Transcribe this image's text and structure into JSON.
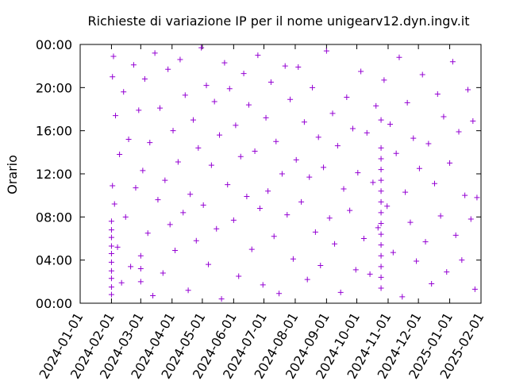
{
  "chart_data": {
    "type": "scatter",
    "title": "Richieste di variazione IP per il nome unigearv12.dyn.ingv.it",
    "xlabel": "",
    "ylabel": "Orario",
    "x_range": [
      "2024-01-01",
      "2025-02-01"
    ],
    "y_range": [
      "00:00",
      "24:00"
    ],
    "x_ticks": [
      "2024-01-01",
      "2024-02-01",
      "2024-03-01",
      "2024-04-01",
      "2024-05-01",
      "2024-06-01",
      "2024-07-01",
      "2024-08-01",
      "2024-09-01",
      "2024-10-01",
      "2024-11-01",
      "2024-12-01",
      "2025-01-01",
      "2025-02-01"
    ],
    "y_ticks": [
      "00:00",
      "04:00",
      "08:00",
      "12:00",
      "16:00",
      "20:00",
      "00:00"
    ],
    "y_tick_hours": [
      0,
      4,
      8,
      12,
      16,
      20,
      24
    ],
    "marker": "plus",
    "color": "#9400d3",
    "grid": false,
    "legend": "none",
    "series": [
      {
        "values": [
          [
            "2024-02-01",
            0.8
          ],
          [
            "2024-02-01",
            1.5
          ],
          [
            "2024-02-01",
            2.3
          ],
          [
            "2024-02-01",
            3.0
          ],
          [
            "2024-02-01",
            3.8
          ],
          [
            "2024-02-01",
            4.6
          ],
          [
            "2024-02-01",
            5.3
          ],
          [
            "2024-02-01",
            6.1
          ],
          [
            "2024-02-01",
            6.8
          ],
          [
            "2024-02-01",
            7.6
          ],
          [
            "2024-02-02",
            10.9
          ],
          [
            "2024-02-02",
            21.0
          ],
          [
            "2024-02-03",
            22.9
          ],
          [
            "2024-02-04",
            9.2
          ],
          [
            "2024-02-05",
            17.4
          ],
          [
            "2024-02-07",
            5.2
          ],
          [
            "2024-02-09",
            13.8
          ],
          [
            "2024-02-11",
            1.9
          ],
          [
            "2024-02-13",
            19.6
          ],
          [
            "2024-02-15",
            8.0
          ],
          [
            "2024-02-18",
            15.2
          ],
          [
            "2024-02-20",
            3.4
          ],
          [
            "2024-02-23",
            22.1
          ],
          [
            "2024-02-25",
            10.7
          ],
          [
            "2024-02-28",
            17.9
          ],
          [
            "2024-03-01",
            4.4
          ],
          [
            "2024-03-01",
            3.2
          ],
          [
            "2024-03-01",
            2.0
          ],
          [
            "2024-03-03",
            12.3
          ],
          [
            "2024-03-05",
            20.8
          ],
          [
            "2024-03-08",
            6.5
          ],
          [
            "2024-03-10",
            14.9
          ],
          [
            "2024-03-13",
            0.7
          ],
          [
            "2024-03-15",
            23.2
          ],
          [
            "2024-03-18",
            9.6
          ],
          [
            "2024-03-20",
            18.1
          ],
          [
            "2024-03-23",
            2.8
          ],
          [
            "2024-03-25",
            11.4
          ],
          [
            "2024-03-28",
            21.7
          ],
          [
            "2024-03-30",
            7.3
          ],
          [
            "2024-04-02",
            16.0
          ],
          [
            "2024-04-04",
            4.9
          ],
          [
            "2024-04-07",
            13.1
          ],
          [
            "2024-04-09",
            22.6
          ],
          [
            "2024-04-12",
            8.4
          ],
          [
            "2024-04-14",
            19.3
          ],
          [
            "2024-04-17",
            1.2
          ],
          [
            "2024-04-19",
            10.1
          ],
          [
            "2024-04-22",
            17.0
          ],
          [
            "2024-04-25",
            5.8
          ],
          [
            "2024-04-27",
            14.4
          ],
          [
            "2024-04-30",
            23.7
          ],
          [
            "2024-05-02",
            9.1
          ],
          [
            "2024-05-05",
            20.2
          ],
          [
            "2024-05-07",
            3.6
          ],
          [
            "2024-05-10",
            12.8
          ],
          [
            "2024-05-13",
            18.7
          ],
          [
            "2024-05-15",
            6.9
          ],
          [
            "2024-05-18",
            15.6
          ],
          [
            "2024-05-20",
            0.4
          ],
          [
            "2024-05-23",
            22.3
          ],
          [
            "2024-05-26",
            11.0
          ],
          [
            "2024-05-28",
            19.9
          ],
          [
            "2024-06-01",
            7.7
          ],
          [
            "2024-06-03",
            16.5
          ],
          [
            "2024-06-06",
            2.5
          ],
          [
            "2024-06-08",
            13.6
          ],
          [
            "2024-06-11",
            21.3
          ],
          [
            "2024-06-14",
            9.9
          ],
          [
            "2024-06-16",
            18.4
          ],
          [
            "2024-06-19",
            5.0
          ],
          [
            "2024-06-22",
            14.1
          ],
          [
            "2024-06-25",
            23.0
          ],
          [
            "2024-06-27",
            8.8
          ],
          [
            "2024-06-30",
            1.7
          ],
          [
            "2024-07-03",
            17.2
          ],
          [
            "2024-07-05",
            10.4
          ],
          [
            "2024-07-08",
            20.5
          ],
          [
            "2024-07-11",
            6.2
          ],
          [
            "2024-07-13",
            15.0
          ],
          [
            "2024-07-16",
            0.9
          ],
          [
            "2024-07-19",
            12.0
          ],
          [
            "2024-07-22",
            22.0
          ],
          [
            "2024-07-24",
            8.2
          ],
          [
            "2024-07-27",
            18.9
          ],
          [
            "2024-07-30",
            4.1
          ],
          [
            "2024-08-02",
            13.3
          ],
          [
            "2024-08-04",
            21.9
          ],
          [
            "2024-08-07",
            9.4
          ],
          [
            "2024-08-10",
            16.8
          ],
          [
            "2024-08-13",
            2.2
          ],
          [
            "2024-08-15",
            11.7
          ],
          [
            "2024-08-18",
            20.0
          ],
          [
            "2024-08-21",
            6.6
          ],
          [
            "2024-08-24",
            15.4
          ],
          [
            "2024-08-26",
            3.5
          ],
          [
            "2024-08-29",
            12.6
          ],
          [
            "2024-09-01",
            23.4
          ],
          [
            "2024-09-04",
            7.9
          ],
          [
            "2024-09-07",
            17.6
          ],
          [
            "2024-09-09",
            5.5
          ],
          [
            "2024-09-12",
            14.6
          ],
          [
            "2024-09-15",
            1.0
          ],
          [
            "2024-09-18",
            10.6
          ],
          [
            "2024-09-21",
            19.1
          ],
          [
            "2024-09-24",
            8.6
          ],
          [
            "2024-09-27",
            16.2
          ],
          [
            "2024-09-30",
            3.1
          ],
          [
            "2024-10-02",
            12.1
          ],
          [
            "2024-10-05",
            21.5
          ],
          [
            "2024-10-08",
            6.0
          ],
          [
            "2024-10-11",
            15.8
          ],
          [
            "2024-10-14",
            2.7
          ],
          [
            "2024-10-17",
            11.2
          ],
          [
            "2024-10-20",
            18.3
          ],
          [
            "2024-10-22",
            7.0
          ],
          [
            "2024-10-25",
            1.4
          ],
          [
            "2024-10-25",
            2.4
          ],
          [
            "2024-10-25",
            3.4
          ],
          [
            "2024-10-25",
            4.4
          ],
          [
            "2024-10-25",
            5.4
          ],
          [
            "2024-10-25",
            6.4
          ],
          [
            "2024-10-25",
            7.4
          ],
          [
            "2024-10-25",
            8.4
          ],
          [
            "2024-10-25",
            9.4
          ],
          [
            "2024-10-25",
            10.4
          ],
          [
            "2024-10-25",
            11.4
          ],
          [
            "2024-10-25",
            12.4
          ],
          [
            "2024-10-25",
            13.4
          ],
          [
            "2024-10-25",
            14.4
          ],
          [
            "2024-10-25",
            17.0
          ],
          [
            "2024-10-28",
            20.7
          ],
          [
            "2024-10-31",
            9.0
          ],
          [
            "2024-11-03",
            16.6
          ],
          [
            "2024-11-06",
            4.7
          ],
          [
            "2024-11-09",
            13.9
          ],
          [
            "2024-11-12",
            22.8
          ],
          [
            "2024-11-15",
            0.6
          ],
          [
            "2024-11-18",
            10.3
          ],
          [
            "2024-11-20",
            18.6
          ],
          [
            "2024-11-23",
            7.5
          ],
          [
            "2024-11-26",
            15.3
          ],
          [
            "2024-11-29",
            3.9
          ],
          [
            "2024-12-02",
            12.5
          ],
          [
            "2024-12-05",
            21.2
          ],
          [
            "2024-12-08",
            5.7
          ],
          [
            "2024-12-11",
            14.8
          ],
          [
            "2024-12-14",
            1.8
          ],
          [
            "2024-12-17",
            11.1
          ],
          [
            "2024-12-20",
            19.4
          ],
          [
            "2024-12-23",
            8.1
          ],
          [
            "2024-12-26",
            17.3
          ],
          [
            "2024-12-29",
            2.9
          ],
          [
            "2025-01-01",
            13.0
          ],
          [
            "2025-01-04",
            22.4
          ],
          [
            "2025-01-07",
            6.3
          ],
          [
            "2025-01-10",
            15.9
          ],
          [
            "2025-01-13",
            4.0
          ],
          [
            "2025-01-16",
            10.0
          ],
          [
            "2025-01-19",
            19.8
          ],
          [
            "2025-01-22",
            7.8
          ],
          [
            "2025-01-24",
            16.9
          ],
          [
            "2025-01-26",
            1.3
          ],
          [
            "2025-01-28",
            9.8
          ]
        ]
      }
    ]
  }
}
